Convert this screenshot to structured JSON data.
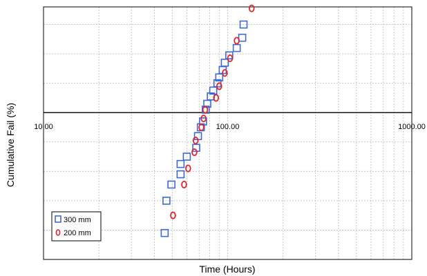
{
  "chart_data": {
    "type": "scatter",
    "title": "",
    "xlabel": "Time (Hours)",
    "ylabel": "Cumulative Fail (%)",
    "x_scale": "log",
    "xlim": [
      10,
      1000
    ],
    "x_tick_labels": [
      "10.00",
      "100.00",
      "1000.00"
    ],
    "x_tick_values": [
      10,
      100,
      1000
    ],
    "x_axis_crossing_level": 0,
    "ylim": [
      -5,
      3.6
    ],
    "grid": true,
    "legend_position": "bottom-left",
    "series": [
      {
        "name": "300 mm",
        "marker": "square",
        "color": "#3d68d8",
        "points": [
          [
            45.5,
            -4.1
          ],
          [
            46.5,
            -3.0
          ],
          [
            49.5,
            -2.45
          ],
          [
            55.5,
            -2.1
          ],
          [
            55.5,
            -1.75
          ],
          [
            60,
            -1.5
          ],
          [
            67.5,
            -1.2
          ],
          [
            69,
            -0.8
          ],
          [
            71.5,
            -0.5
          ],
          [
            73.5,
            -0.3
          ],
          [
            76,
            0.1
          ],
          [
            77.5,
            0.3
          ],
          [
            81,
            0.55
          ],
          [
            83.5,
            0.75
          ],
          [
            88,
            1.0
          ],
          [
            90,
            1.2
          ],
          [
            94,
            1.45
          ],
          [
            96.5,
            1.7
          ],
          [
            102,
            1.95
          ],
          [
            112,
            2.2
          ],
          [
            120,
            2.55
          ],
          [
            122,
            3.0
          ]
        ]
      },
      {
        "name": "200 mm",
        "marker": "circle",
        "color": "#e0262a",
        "points": [
          [
            50.5,
            -3.5
          ],
          [
            58,
            -2.45
          ],
          [
            61,
            -1.9
          ],
          [
            66,
            -1.35
          ],
          [
            67,
            -0.95
          ],
          [
            72,
            -0.5
          ],
          [
            74,
            -0.2
          ],
          [
            75.5,
            0.1
          ],
          [
            86.5,
            0.5
          ],
          [
            90,
            0.9
          ],
          [
            96.5,
            1.35
          ],
          [
            103,
            1.85
          ],
          [
            112,
            2.45
          ],
          [
            135,
            3.55
          ]
        ]
      }
    ]
  }
}
